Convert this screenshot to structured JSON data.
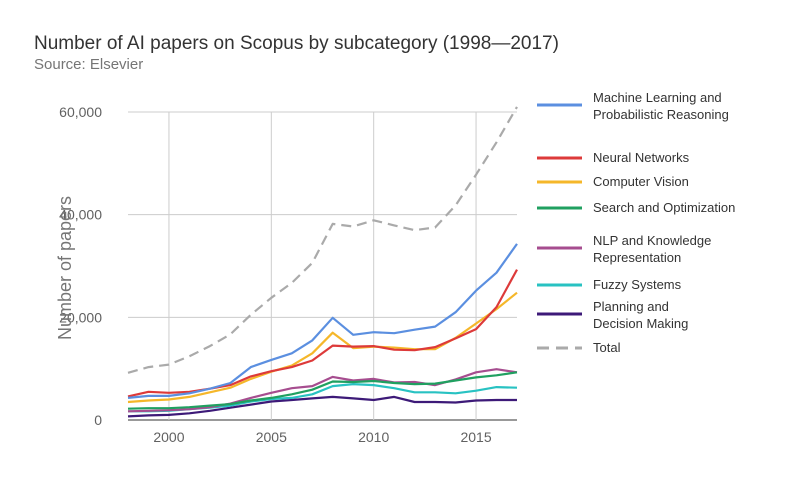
{
  "chart_data": {
    "type": "line",
    "title": "Number of AI papers on Scopus by subcategory (1998—2017)",
    "subtitle": "Source: Elsevier",
    "ylabel": "Number of papers",
    "xlabel": "",
    "xlim": [
      1998,
      2017
    ],
    "ylim": [
      0,
      60000
    ],
    "x_ticks": [
      2000,
      2005,
      2010,
      2015
    ],
    "x_tick_labels": [
      "2000",
      "2005",
      "2010",
      "2015"
    ],
    "y_ticks": [
      0,
      20000,
      40000,
      60000
    ],
    "y_tick_labels": [
      "0",
      "20,000",
      "40,000",
      "60,000"
    ],
    "grid": true,
    "legend_position": "right",
    "x": [
      1998,
      1999,
      2000,
      2001,
      2002,
      2003,
      2004,
      2005,
      2006,
      2007,
      2008,
      2009,
      2010,
      2011,
      2012,
      2013,
      2014,
      2015,
      2016,
      2017
    ],
    "series": [
      {
        "name": "Machine Learning and Probabilistic Reasoning",
        "legend_lines": [
          "Machine Learning and",
          "Probabilistic Reasoning"
        ],
        "color": "#5b8fe0",
        "dashed": false,
        "values": [
          4300,
          4700,
          4700,
          5200,
          6100,
          7200,
          10300,
          11700,
          13000,
          15500,
          19900,
          16600,
          17100,
          16900,
          17600,
          18200,
          21000,
          25200,
          28700,
          34300
        ]
      },
      {
        "name": "Neural Networks",
        "legend_lines": [
          "Neural Networks"
        ],
        "color": "#dd3a3a",
        "dashed": false,
        "values": [
          4600,
          5500,
          5300,
          5500,
          6100,
          6800,
          8500,
          9500,
          10300,
          11600,
          14500,
          14300,
          14400,
          13700,
          13600,
          14200,
          15900,
          17700,
          22000,
          29300
        ]
      },
      {
        "name": "Computer Vision",
        "legend_lines": [
          "Computer Vision"
        ],
        "color": "#f5b72a",
        "dashed": false,
        "values": [
          3500,
          3800,
          4000,
          4500,
          5400,
          6300,
          8000,
          9400,
          10600,
          13000,
          17000,
          14000,
          14300,
          14100,
          13800,
          13800,
          16000,
          18800,
          21600,
          24800
        ]
      },
      {
        "name": "Search and Optimization",
        "legend_lines": [
          "Search and Optimization"
        ],
        "color": "#20a060",
        "dashed": false,
        "values": [
          2200,
          2300,
          2300,
          2500,
          2800,
          3100,
          3800,
          4300,
          5000,
          5900,
          7500,
          7400,
          7600,
          7200,
          7000,
          7100,
          7700,
          8300,
          8700,
          9300
        ]
      },
      {
        "name": "NLP and Knowledge Representation",
        "legend_lines": [
          "NLP and Knowledge",
          "Representation"
        ],
        "color": "#a64d8f",
        "dashed": false,
        "values": [
          1700,
          1800,
          1900,
          2100,
          2500,
          3200,
          4300,
          5300,
          6200,
          6600,
          8400,
          7700,
          8000,
          7300,
          7400,
          6800,
          7900,
          9300,
          9900,
          9300
        ]
      },
      {
        "name": "Fuzzy Systems",
        "legend_lines": [
          "Fuzzy Systems"
        ],
        "color": "#28c2c2",
        "dashed": false,
        "values": [
          1700,
          1700,
          1800,
          2100,
          2400,
          2800,
          3600,
          4100,
          4300,
          5000,
          6600,
          7000,
          6800,
          6200,
          5400,
          5400,
          5200,
          5700,
          6400,
          6300
        ]
      },
      {
        "name": "Planning and Decision Making",
        "legend_lines": [
          "Planning and",
          "Decision Making"
        ],
        "color": "#3d1a78",
        "dashed": false,
        "values": [
          700,
          900,
          1000,
          1300,
          1800,
          2400,
          3000,
          3600,
          3900,
          4200,
          4500,
          4200,
          3900,
          4500,
          3500,
          3500,
          3400,
          3800,
          3900,
          3900
        ]
      },
      {
        "name": "Total",
        "legend_lines": [
          "Total"
        ],
        "color": "#aaaaaa",
        "dashed": true,
        "values": [
          9200,
          10300,
          10800,
          12400,
          14400,
          16700,
          20500,
          23800,
          26700,
          30600,
          38200,
          37700,
          38900,
          37900,
          37000,
          37500,
          41800,
          47800,
          54100,
          61000
        ]
      }
    ]
  }
}
